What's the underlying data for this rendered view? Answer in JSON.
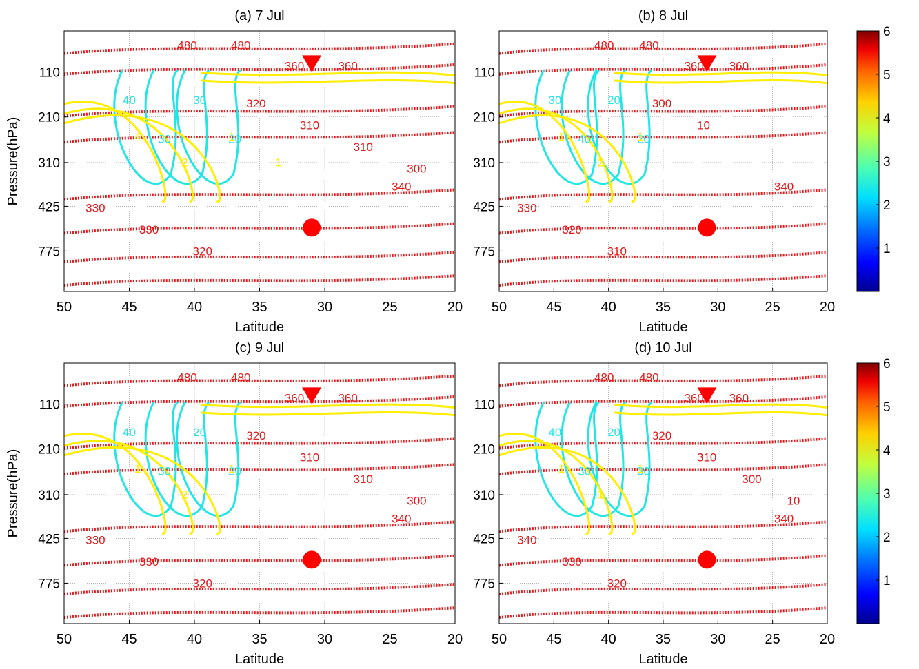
{
  "figure": {
    "ylabel": "Pressure(hPa)",
    "xlabel": "Latitude",
    "colorbar": {
      "ticks": [
        1,
        2,
        3,
        4,
        5,
        6
      ],
      "range": [
        0,
        6
      ],
      "colors": [
        "#00008f",
        "#0000ff",
        "#0070ff",
        "#00dfff",
        "#50ffaf",
        "#c0ff40",
        "#ffd000",
        "#ff6000",
        "#ef0000",
        "#800000"
      ]
    },
    "colors": {
      "filled_low": "#00008b",
      "theta_contour": "#e31a1c",
      "cyan_contour": "#22e5e5",
      "yellow_contour": "#ffee00",
      "terrain": "#000000",
      "marker": "#ff0000"
    }
  },
  "chart_data": [
    {
      "type": "contour-cross-section",
      "title": "(a) 7 Jul",
      "x_ticks": [
        50,
        45,
        40,
        35,
        30,
        25,
        20
      ],
      "y_ticks": [
        "110",
        "210",
        "310",
        "425",
        "775"
      ],
      "xlim": [
        50,
        20
      ],
      "theta_labels": [
        "480",
        "480",
        "360",
        "360",
        "340",
        "330",
        "330",
        "320",
        "320",
        "310",
        "310",
        "300"
      ],
      "cyan_labels": [
        "40",
        "30",
        "30",
        "20"
      ],
      "yellow_labels": [
        "4",
        "2",
        "1",
        "1"
      ],
      "markers": {
        "triangle_lat": 31,
        "circle_lat": 31
      }
    },
    {
      "type": "contour-cross-section",
      "title": "(b) 8 Jul",
      "x_ticks": [
        50,
        45,
        40,
        35,
        30,
        25,
        20
      ],
      "y_ticks": [
        "110",
        "210",
        "310",
        "425",
        "775"
      ],
      "xlim": [
        50,
        20
      ],
      "theta_labels": [
        "480",
        "480",
        "360",
        "360",
        "340",
        "330",
        "320",
        "310",
        "300",
        "10"
      ],
      "cyan_labels": [
        "30",
        "40",
        "20",
        "20"
      ],
      "yellow_labels": [
        "1",
        "2",
        "1"
      ],
      "markers": {
        "triangle_lat": 31,
        "circle_lat": 31
      }
    },
    {
      "type": "contour-cross-section",
      "title": "(c) 9 Jul",
      "x_ticks": [
        50,
        45,
        40,
        35,
        30,
        25,
        20
      ],
      "y_ticks": [
        "110",
        "210",
        "310",
        "425",
        "775"
      ],
      "xlim": [
        50,
        20
      ],
      "theta_labels": [
        "480",
        "480",
        "360",
        "360",
        "340",
        "330",
        "330",
        "320",
        "320",
        "310",
        "310",
        "300"
      ],
      "cyan_labels": [
        "40",
        "30",
        "20",
        "20"
      ],
      "yellow_labels": [
        "1",
        "2",
        "1"
      ],
      "markers": {
        "triangle_lat": 31,
        "circle_lat": 31
      }
    },
    {
      "type": "contour-cross-section",
      "title": "(d) 10 Jul",
      "x_ticks": [
        50,
        45,
        40,
        35,
        30,
        25,
        20
      ],
      "y_ticks": [
        "110",
        "210",
        "310",
        "425",
        "775"
      ],
      "xlim": [
        50,
        20
      ],
      "theta_labels": [
        "480",
        "480",
        "360",
        "360",
        "340",
        "340",
        "330",
        "320",
        "320",
        "310",
        "300",
        "10"
      ],
      "cyan_labels": [
        "40",
        "30",
        "20",
        "30"
      ],
      "yellow_labels": [
        "1",
        "1",
        "1"
      ],
      "markers": {
        "triangle_lat": 31,
        "circle_lat": 31
      }
    }
  ]
}
